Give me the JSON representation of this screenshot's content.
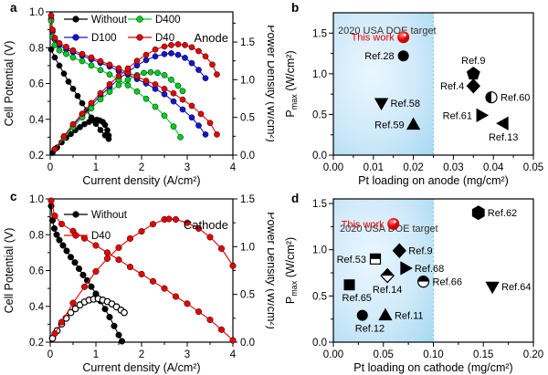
{
  "figure": {
    "background": "#ffffff",
    "accent_red": "#e60000",
    "accent_blue": "#1414d2",
    "accent_green": "#00cc22",
    "region_fill_inner": "#eaf7fe",
    "region_fill_outer": "#a5d8f2",
    "region_line_color": "#5bc8e8"
  },
  "chart_data": [
    {
      "panel": "a",
      "panel_letter": "a",
      "type": "line",
      "plot_title": "Anode",
      "xlabel": "Current density (A/cm²)",
      "ylabel_left": "Cell Potential (V)",
      "ylabel_right": "Power Density (W/cm²)",
      "xlim": [
        0,
        4
      ],
      "xticks": [
        0,
        1,
        2,
        3,
        4
      ],
      "xtick_labels": [
        "0",
        "1",
        "2",
        "3",
        "4"
      ],
      "xminor": [
        0.5,
        1.5,
        2.5,
        3.5
      ],
      "ylim_left": [
        0.2,
        1.0
      ],
      "yticks_left": [
        0.2,
        0.4,
        0.6,
        0.8,
        1.0
      ],
      "ytick_left_labels": [
        "0.2",
        "0.4",
        "0.6",
        "0.8",
        "1.0"
      ],
      "yminor_left": [
        0.3,
        0.5,
        0.7,
        0.9
      ],
      "ylim_right": [
        0,
        1.9
      ],
      "yticks_right": [
        0,
        0.5,
        1.0,
        1.5
      ],
      "ytick_right_labels": [
        "0.0",
        "0.5",
        "1.0",
        "1.5"
      ],
      "yminor_right": [
        0.25,
        0.75,
        1.25,
        1.75
      ],
      "legend_columns": 2,
      "legend": [
        {
          "label": "Without",
          "color": "#000000"
        },
        {
          "label": "D400",
          "color": "#00cc22"
        },
        {
          "label": "D100",
          "color": "#1414d2"
        },
        {
          "label": "D40",
          "color": "#e60000"
        }
      ],
      "series": [
        {
          "name": "Without-potential",
          "color": "#000000",
          "axis": "left",
          "open": false,
          "x": [
            0.02,
            0.1,
            0.2,
            0.3,
            0.4,
            0.5,
            0.6,
            0.7,
            0.8,
            0.9,
            1.0,
            1.1,
            1.2,
            1.28
          ],
          "y": [
            0.79,
            0.745,
            0.7,
            0.655,
            0.61,
            0.57,
            0.53,
            0.49,
            0.45,
            0.41,
            0.375,
            0.34,
            0.31,
            0.29
          ]
        },
        {
          "name": "Without-power",
          "color": "#000000",
          "axis": "right",
          "open": false,
          "x": [
            0.05,
            0.15,
            0.25,
            0.35,
            0.45,
            0.55,
            0.65,
            0.75,
            0.85,
            0.95,
            1.02,
            1.08,
            1.15,
            1.2,
            1.25,
            1.28
          ],
          "y": [
            0.03,
            0.1,
            0.17,
            0.23,
            0.28,
            0.33,
            0.37,
            0.41,
            0.44,
            0.46,
            0.47,
            0.46,
            0.44,
            0.4,
            0.33,
            0.26
          ]
        },
        {
          "name": "D100-potential",
          "color": "#1414d2",
          "axis": "left",
          "open": false,
          "x": [
            0.02,
            0.05,
            0.1,
            0.2,
            0.35,
            0.5,
            0.7,
            0.9,
            1.1,
            1.3,
            1.5,
            1.7,
            1.9,
            2.1,
            2.3,
            2.5,
            2.7,
            2.9,
            3.1,
            3.25,
            3.4
          ],
          "y": [
            0.96,
            0.89,
            0.845,
            0.815,
            0.79,
            0.775,
            0.755,
            0.735,
            0.715,
            0.695,
            0.67,
            0.65,
            0.625,
            0.6,
            0.57,
            0.54,
            0.5,
            0.455,
            0.41,
            0.365,
            0.315
          ]
        },
        {
          "name": "D100-power",
          "color": "#1414d2",
          "axis": "right",
          "open": false,
          "x": [
            0.1,
            0.3,
            0.5,
            0.7,
            0.9,
            1.1,
            1.3,
            1.5,
            1.7,
            1.9,
            2.1,
            2.3,
            2.5,
            2.65,
            2.8,
            2.95,
            3.1,
            3.25,
            3.4
          ],
          "y": [
            0.08,
            0.24,
            0.39,
            0.53,
            0.66,
            0.79,
            0.9,
            1.01,
            1.1,
            1.19,
            1.26,
            1.31,
            1.34,
            1.35,
            1.33,
            1.29,
            1.22,
            1.13,
            1.02
          ]
        },
        {
          "name": "D400-potential",
          "color": "#00cc22",
          "axis": "left",
          "open": false,
          "x": [
            0.02,
            0.05,
            0.1,
            0.2,
            0.35,
            0.5,
            0.7,
            0.9,
            1.1,
            1.3,
            1.5,
            1.7,
            1.9,
            2.1,
            2.3,
            2.5,
            2.7,
            2.85
          ],
          "y": [
            0.95,
            0.86,
            0.815,
            0.785,
            0.765,
            0.745,
            0.725,
            0.7,
            0.675,
            0.65,
            0.62,
            0.59,
            0.555,
            0.515,
            0.47,
            0.42,
            0.36,
            0.3
          ]
        },
        {
          "name": "D400-power",
          "color": "#00cc22",
          "axis": "right",
          "open": false,
          "x": [
            0.1,
            0.3,
            0.5,
            0.7,
            0.9,
            1.1,
            1.3,
            1.5,
            1.7,
            1.9,
            2.05,
            2.2,
            2.35,
            2.5,
            2.65,
            2.8,
            2.9
          ],
          "y": [
            0.08,
            0.23,
            0.37,
            0.5,
            0.62,
            0.74,
            0.84,
            0.93,
            1.0,
            1.06,
            1.09,
            1.1,
            1.09,
            1.06,
            1.0,
            0.92,
            0.85
          ]
        },
        {
          "name": "D40-potential",
          "color": "#e60000",
          "axis": "left",
          "open": false,
          "x": [
            0.02,
            0.05,
            0.1,
            0.2,
            0.35,
            0.5,
            0.7,
            0.9,
            1.1,
            1.3,
            1.5,
            1.7,
            1.9,
            2.1,
            2.3,
            2.5,
            2.7,
            2.9,
            3.1,
            3.3,
            3.5,
            3.65
          ],
          "y": [
            0.98,
            0.9,
            0.855,
            0.825,
            0.805,
            0.785,
            0.765,
            0.745,
            0.725,
            0.705,
            0.685,
            0.66,
            0.64,
            0.615,
            0.595,
            0.57,
            0.545,
            0.51,
            0.475,
            0.43,
            0.38,
            0.315
          ]
        },
        {
          "name": "D40-power",
          "color": "#e60000",
          "axis": "right",
          "open": false,
          "x": [
            0.1,
            0.3,
            0.5,
            0.7,
            0.9,
            1.1,
            1.3,
            1.5,
            1.7,
            1.9,
            2.1,
            2.3,
            2.5,
            2.65,
            2.8,
            2.95,
            3.1,
            3.25,
            3.4,
            3.55,
            3.65
          ],
          "y": [
            0.08,
            0.25,
            0.41,
            0.55,
            0.69,
            0.82,
            0.94,
            1.05,
            1.15,
            1.25,
            1.33,
            1.4,
            1.44,
            1.46,
            1.47,
            1.46,
            1.43,
            1.38,
            1.31,
            1.2,
            1.07
          ]
        }
      ]
    },
    {
      "panel": "b",
      "panel_letter": "b",
      "type": "scatter",
      "xlabel": "Pt loading on anode (mg/cm²)",
      "ylabel_parts": [
        {
          "t": "P"
        },
        {
          "t": "max",
          "sub": true
        },
        {
          "t": " (W/cm²)"
        }
      ],
      "xlim": [
        0,
        0.05
      ],
      "xticks": [
        0,
        0.01,
        0.02,
        0.03,
        0.04,
        0.05
      ],
      "xtick_labels": [
        "0.00",
        "0.01",
        "0.02",
        "0.03",
        "0.04",
        "0.05"
      ],
      "xminor": [
        0.005,
        0.015,
        0.025,
        0.035,
        0.045
      ],
      "ylim": [
        0,
        1.75
      ],
      "yticks": [
        0,
        0.5,
        1.0,
        1.5
      ],
      "ytick_labels": [
        "0.0",
        "0.5",
        "1.0",
        "1.5"
      ],
      "yminor": [
        0.25,
        0.75,
        1.25
      ],
      "region": {
        "x_max": 0.025,
        "label": "2020 USA DOE target"
      },
      "points": [
        {
          "label": "This work",
          "x": 0.0175,
          "y": 1.45,
          "marker": "sphere",
          "label_side": "left",
          "label_color": "#e60000"
        },
        {
          "label": "Ref.28",
          "x": 0.0175,
          "y": 1.22,
          "marker": "circle",
          "label_side": "left"
        },
        {
          "label": "Ref.9",
          "x": 0.035,
          "y": 1.0,
          "marker": "pentagon",
          "label_side": "top"
        },
        {
          "label": "Ref.4",
          "x": 0.035,
          "y": 0.85,
          "marker": "diamond",
          "label_side": "left"
        },
        {
          "label": "Ref.60",
          "x": 0.0395,
          "y": 0.71,
          "marker": "circle-half-left",
          "label_side": "right"
        },
        {
          "label": "Ref.58",
          "x": 0.012,
          "y": 0.64,
          "marker": "triangle-down",
          "label_side": "right"
        },
        {
          "label": "Ref.61",
          "x": 0.037,
          "y": 0.49,
          "marker": "triangle-right",
          "label_side": "left"
        },
        {
          "label": "Ref.13",
          "x": 0.0425,
          "y": 0.39,
          "marker": "triangle-left",
          "label_side": "bottom"
        },
        {
          "label": "Ref.59",
          "x": 0.02,
          "y": 0.375,
          "marker": "triangle-up",
          "label_side": "left"
        }
      ]
    },
    {
      "panel": "c",
      "panel_letter": "c",
      "type": "line",
      "plot_title": "Cathode",
      "xlabel": "Current density (A/cm²)",
      "ylabel_left": "Cell Potential (V)",
      "ylabel_right": "Power Density (W/cm²)",
      "xlim": [
        0,
        4
      ],
      "xticks": [
        0,
        1,
        2,
        3,
        4
      ],
      "xtick_labels": [
        "0",
        "1",
        "2",
        "3",
        "4"
      ],
      "xminor": [
        0.5,
        1.5,
        2.5,
        3.5
      ],
      "ylim_left": [
        0.2,
        1.0
      ],
      "yticks_left": [
        0.2,
        0.4,
        0.6,
        0.8,
        1.0
      ],
      "ytick_left_labels": [
        "0.2",
        "0.4",
        "0.6",
        "0.8",
        "1.0"
      ],
      "yminor_left": [
        0.3,
        0.5,
        0.7,
        0.9
      ],
      "ylim_right": [
        0,
        1.5
      ],
      "yticks_right": [
        0,
        0.5,
        1.0,
        1.5
      ],
      "ytick_right_labels": [
        "0.0",
        "0.5",
        "1.0",
        "1.5"
      ],
      "yminor_right": [
        0.25,
        0.75,
        1.25
      ],
      "legend_columns": 1,
      "legend": [
        {
          "label": "Without",
          "color": "#000000"
        },
        {
          "label": "D40",
          "color": "#e60000"
        }
      ],
      "series": [
        {
          "name": "Without-potential",
          "color": "#000000",
          "axis": "left",
          "open": false,
          "x": [
            0.02,
            0.05,
            0.09,
            0.14,
            0.2,
            0.28,
            0.36,
            0.45,
            0.54,
            0.63,
            0.72,
            0.81,
            0.9,
            1.0,
            1.1,
            1.2,
            1.3,
            1.4,
            1.5,
            1.57
          ],
          "y": [
            0.96,
            0.88,
            0.835,
            0.8,
            0.77,
            0.74,
            0.71,
            0.675,
            0.645,
            0.61,
            0.575,
            0.545,
            0.51,
            0.47,
            0.43,
            0.385,
            0.34,
            0.29,
            0.24,
            0.205
          ]
        },
        {
          "name": "Without-power",
          "color": "#000000",
          "axis": "right",
          "open": true,
          "x": [
            0.05,
            0.15,
            0.25,
            0.35,
            0.45,
            0.55,
            0.65,
            0.75,
            0.85,
            0.95,
            1.05,
            1.15,
            1.25,
            1.35,
            1.45,
            1.55,
            1.62
          ],
          "y": [
            0.04,
            0.12,
            0.19,
            0.25,
            0.31,
            0.35,
            0.39,
            0.42,
            0.44,
            0.45,
            0.455,
            0.44,
            0.425,
            0.4,
            0.37,
            0.335,
            0.31
          ]
        },
        {
          "name": "D40-potential",
          "color": "#e60000",
          "axis": "left",
          "open": false,
          "x": [
            0.02,
            0.1,
            0.25,
            0.5,
            0.75,
            1.0,
            1.25,
            1.5,
            1.75,
            2.0,
            2.25,
            2.5,
            2.75,
            3.0,
            3.25,
            3.5,
            3.75,
            4.0
          ],
          "y": [
            0.99,
            0.905,
            0.86,
            0.82,
            0.78,
            0.74,
            0.7,
            0.66,
            0.62,
            0.58,
            0.54,
            0.5,
            0.455,
            0.415,
            0.37,
            0.325,
            0.27,
            0.21
          ]
        },
        {
          "name": "D40-power",
          "color": "#e60000",
          "axis": "right",
          "open": false,
          "x": [
            0.1,
            0.25,
            0.5,
            0.75,
            1.0,
            1.25,
            1.5,
            1.75,
            2.0,
            2.25,
            2.5,
            2.6,
            2.75,
            3.0,
            3.25,
            3.5,
            3.75,
            4.0
          ],
          "y": [
            0.09,
            0.21,
            0.41,
            0.58,
            0.74,
            0.875,
            0.99,
            1.085,
            1.16,
            1.235,
            1.285,
            1.29,
            1.285,
            1.25,
            1.19,
            1.1,
            0.98,
            0.8
          ]
        }
      ]
    },
    {
      "panel": "d",
      "panel_letter": "d",
      "type": "scatter",
      "xlabel": "Pt loading on cathode (mg/cm²)",
      "ylabel_parts": [
        {
          "t": "P"
        },
        {
          "t": "max",
          "sub": true
        },
        {
          "t": " (W/cm²)"
        }
      ],
      "xlim": [
        0,
        0.2
      ],
      "xticks": [
        0,
        0.05,
        0.1,
        0.15,
        0.2
      ],
      "xtick_labels": [
        "0.00",
        "0.05",
        "0.10",
        "0.15",
        "0.20"
      ],
      "xminor": [
        0.025,
        0.075,
        0.125,
        0.175
      ],
      "ylim": [
        0,
        1.55
      ],
      "yticks": [
        0,
        0.5,
        1.0,
        1.5
      ],
      "ytick_labels": [
        "0.0",
        "0.5",
        "1.0",
        "1.5"
      ],
      "yminor": [
        0.25,
        0.75,
        1.25
      ],
      "region": {
        "x_max": 0.1,
        "label": "2020 USA DOE target"
      },
      "points": [
        {
          "label": "Ref.62",
          "x": 0.145,
          "y": 1.4,
          "marker": "hexagon",
          "label_side": "right"
        },
        {
          "label": "This work",
          "x": 0.06,
          "y": 1.28,
          "marker": "sphere",
          "label_side": "left",
          "label_color": "#e60000"
        },
        {
          "label": "Ref.9",
          "x": 0.066,
          "y": 0.99,
          "marker": "diamond",
          "label_side": "right"
        },
        {
          "label": "Ref.53",
          "x": 0.042,
          "y": 0.9,
          "marker": "square-half-top",
          "label_side": "left"
        },
        {
          "label": "Ref.68",
          "x": 0.072,
          "y": 0.8,
          "marker": "triangle-right",
          "label_side": "right"
        },
        {
          "label": "Ref.14",
          "x": 0.054,
          "y": 0.72,
          "marker": "diamond-half-top",
          "label_side": "bottom"
        },
        {
          "label": "Ref.66",
          "x": 0.09,
          "y": 0.655,
          "marker": "circle-half-top",
          "label_side": "right"
        },
        {
          "label": "Ref.65",
          "x": 0.016,
          "y": 0.62,
          "marker": "square",
          "label_side": "bottom-left"
        },
        {
          "label": "Ref.64",
          "x": 0.159,
          "y": 0.6,
          "marker": "triangle-down",
          "label_side": "right"
        },
        {
          "label": "Ref.12",
          "x": 0.029,
          "y": 0.29,
          "marker": "circle",
          "label_side": "bottom-left"
        },
        {
          "label": "Ref.11",
          "x": 0.052,
          "y": 0.29,
          "marker": "triangle-up",
          "label_side": "right"
        }
      ]
    }
  ]
}
